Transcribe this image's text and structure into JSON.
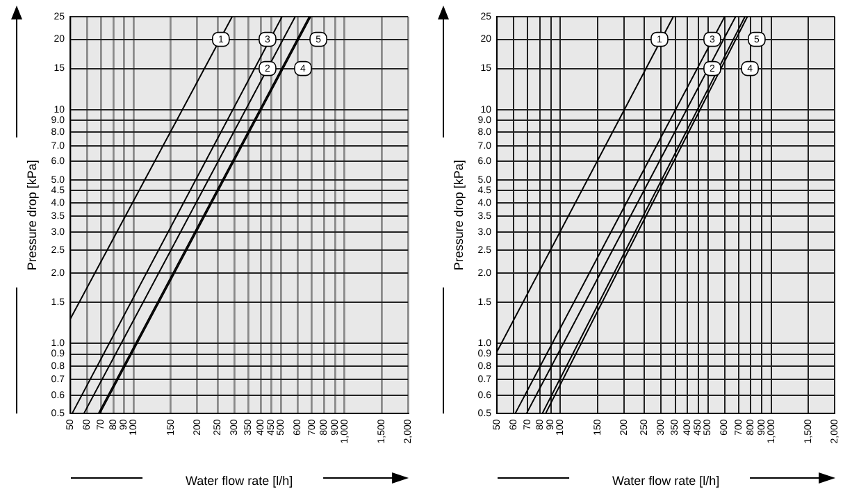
{
  "chart_data": [
    {
      "type": "line",
      "xlabel": "Water flow rate [l/h]",
      "ylabel": "Pressure drop [kPa]",
      "log": "xy",
      "grid": true,
      "marker": "none",
      "line_style": "solid",
      "xlim": [
        50,
        2000
      ],
      "ylim": [
        0.5,
        25
      ],
      "xticks": [
        50,
        60,
        70,
        80,
        90,
        100,
        150,
        200,
        250,
        300,
        350,
        400,
        450,
        500,
        600,
        700,
        800,
        900,
        {
          "value": 1000,
          "label": "1,000"
        },
        {
          "value": 1500,
          "label": "1,500"
        },
        {
          "value": 2000,
          "label": "2,000"
        }
      ],
      "yticks": [
        0.5,
        0.6,
        0.7,
        0.8,
        0.9,
        {
          "value": 1,
          "label": "1.0"
        },
        1.5,
        {
          "value": 2,
          "label": "2.0"
        },
        2.5,
        {
          "value": 3,
          "label": "3.0"
        },
        3.5,
        {
          "value": 4,
          "label": "4.0"
        },
        4.5,
        {
          "value": 5,
          "label": "5.0"
        },
        {
          "value": 6,
          "label": "6.0"
        },
        {
          "value": 7,
          "label": "7.0"
        },
        {
          "value": 8,
          "label": "8.0"
        },
        {
          "value": 9,
          "label": "9.0"
        },
        10,
        15,
        20,
        25
      ],
      "series": [
        {
          "color": "#000000",
          "x": [
            50,
            293
          ],
          "values": [
            1.27,
            25
          ]
        },
        {
          "color": "#000000",
          "x": [
            58,
            583
          ],
          "values": [
            0.5,
            25
          ]
        },
        {
          "color": "#000000",
          "x": [
            51,
            505
          ],
          "values": [
            0.5,
            25
          ]
        },
        {
          "color": "#000000",
          "x": [
            68,
            680
          ],
          "values": [
            0.5,
            25
          ]
        },
        {
          "color": "#000000",
          "x": [
            69,
            690
          ],
          "values": [
            0.5,
            25
          ]
        }
      ],
      "annotations": [
        {
          "text": "1",
          "x": 259,
          "y": 20
        },
        {
          "text": "3",
          "x": 431,
          "y": 20
        },
        {
          "text": "2",
          "x": 431,
          "y": 15
        },
        {
          "text": "5",
          "x": 751,
          "y": 20
        },
        {
          "text": "4",
          "x": 635,
          "y": 15
        }
      ]
    },
    {
      "type": "line",
      "xlabel": "Water flow rate [l/h]",
      "ylabel": "Pressure drop [kPa]",
      "log": "xy",
      "grid": true,
      "marker": "none",
      "line_style": "solid",
      "xlim": [
        50,
        2000
      ],
      "ylim": [
        0.5,
        25
      ],
      "xticks": [
        50,
        60,
        70,
        80,
        90,
        100,
        150,
        200,
        250,
        300,
        350,
        400,
        450,
        500,
        600,
        700,
        800,
        900,
        {
          "value": 1000,
          "label": "1,000"
        },
        {
          "value": 1500,
          "label": "1,500"
        },
        {
          "value": 2000,
          "label": "2,000"
        }
      ],
      "yticks": [
        0.5,
        0.6,
        0.7,
        0.8,
        0.9,
        {
          "value": 1,
          "label": "1.0"
        },
        1.5,
        {
          "value": 2,
          "label": "2.0"
        },
        2.5,
        {
          "value": 3,
          "label": "3.0"
        },
        3.5,
        {
          "value": 4,
          "label": "4.0"
        },
        4.5,
        {
          "value": 5,
          "label": "5.0"
        },
        {
          "value": 6,
          "label": "6.0"
        },
        {
          "value": 7,
          "label": "7.0"
        },
        {
          "value": 8,
          "label": "8.0"
        },
        {
          "value": 9,
          "label": "9.0"
        },
        10,
        15,
        20,
        25
      ],
      "series": [
        {
          "color": "#000000",
          "x": [
            50,
            343
          ],
          "values": [
            0.92,
            25
          ]
        },
        {
          "color": "#000000",
          "x": [
            69,
            677
          ],
          "values": [
            0.5,
            25
          ]
        },
        {
          "color": "#000000",
          "x": [
            61,
            601
          ],
          "values": [
            0.5,
            25
          ]
        },
        {
          "color": "#000000",
          "x": [
            85,
            770
          ],
          "values": [
            0.5,
            25
          ]
        },
        {
          "color": "#000000",
          "x": [
            82,
            750
          ],
          "values": [
            0.5,
            25
          ]
        }
      ],
      "annotations": [
        {
          "text": "1",
          "x": 295,
          "y": 20
        },
        {
          "text": "3",
          "x": 525,
          "y": 20
        },
        {
          "text": "2",
          "x": 525,
          "y": 15
        },
        {
          "text": "5",
          "x": 853,
          "y": 20
        },
        {
          "text": "4",
          "x": 792,
          "y": 15
        }
      ]
    }
  ]
}
